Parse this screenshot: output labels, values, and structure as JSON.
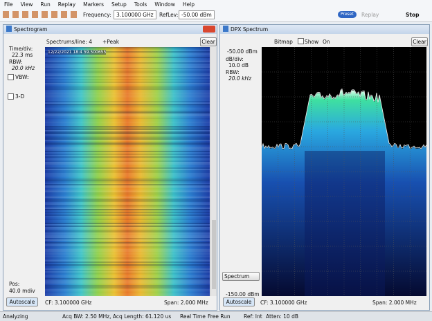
{
  "menu": [
    "File",
    "View",
    "Run",
    "Replay",
    "Markers",
    "Setup",
    "Tools",
    "Window",
    "Help"
  ],
  "toolbar": {
    "frequency_label": "Frequency:",
    "frequency": "3.100000 GHz",
    "reflev_label": "RefLev:",
    "reflev": "-50.00 dBm",
    "preset": "Preset",
    "replay": "Replay",
    "stop": "Stop"
  },
  "spectrogram": {
    "title": "Spectrogram",
    "spectrums_per_line": "Spectrums/line: 4",
    "detector": "+Peak",
    "clear": "Clear",
    "time_div_label": "Time/div:",
    "time_div": "22.3 ms",
    "rbw_label": "RBW:",
    "rbw": "20.0 kHz",
    "vbw": "VBW:",
    "three_d": "3-D",
    "pos_label": "Pos:",
    "pos": "40.0 mdiv",
    "autoscale": "Autoscale",
    "timestamp": "12/22/2021 18:4 59.500655",
    "cf": "CF: 3.100000 GHz",
    "span": "Span: 2.000 MHz"
  },
  "dpx": {
    "title": "DPX Spectrum",
    "bitmap": "Bitmap",
    "show": "Show",
    "on": "On",
    "clear": "Clear",
    "top_level": "-50.00 dBm",
    "db_div_label": "dB/div:",
    "db_div": "10.0 dB",
    "rbw_label": "RBW:",
    "rbw": "20.0 kHz",
    "trace_select": "Spectrum",
    "bottom_level": "-150.00 dBm",
    "autoscale": "Autoscale",
    "cf": "CF: 3.100000 GHz",
    "span": "Span: 2.000 MHz"
  },
  "status_bar": [
    "Analyzing",
    "Acq BW: 2.50 MHz, Acq Length: 61.120 us",
    "Real Time",
    "Free Run",
    "Ref: Int",
    "Atten: 10 dB"
  ]
}
